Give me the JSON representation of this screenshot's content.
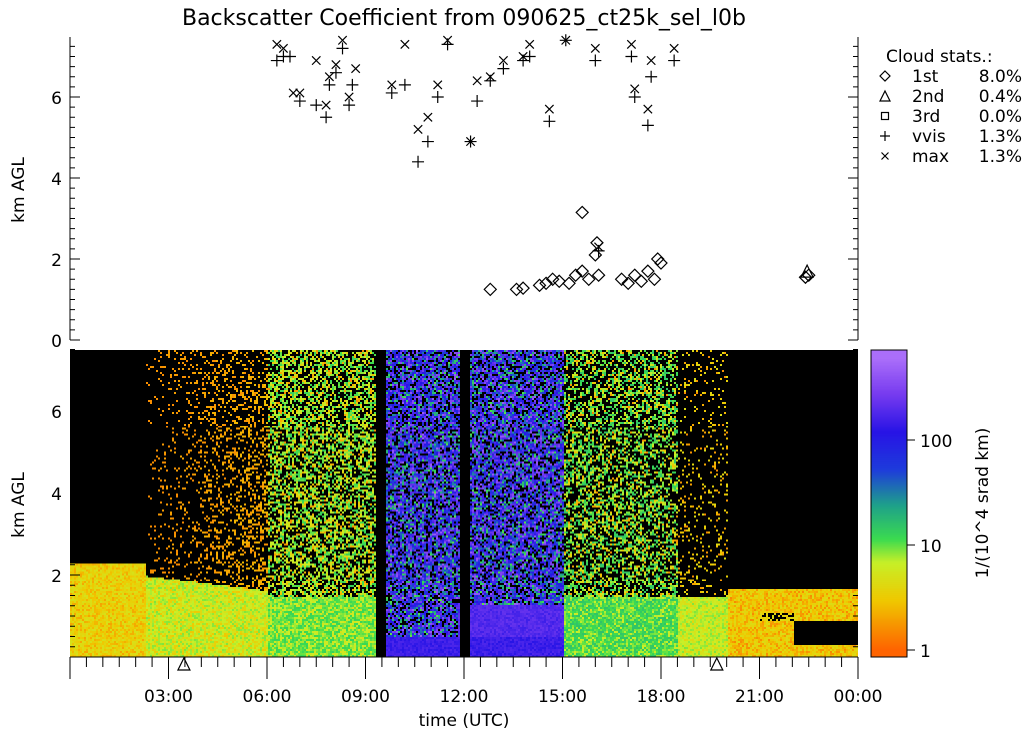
{
  "chart_data": [
    {
      "type": "scatter",
      "title": "Backscatter Coefficient from 090625_ct25k_sel_l0b",
      "ylabel": "km AGL",
      "xlim": [
        0,
        24
      ],
      "ylim": [
        0,
        7.5
      ],
      "y_ticks": [
        "0",
        "2",
        "4",
        "6"
      ],
      "legend": {
        "placement": "right",
        "title": "Cloud stats.:",
        "entries": [
          {
            "symbol": "diamond",
            "name": "1st",
            "value": "8.0%"
          },
          {
            "symbol": "triangle",
            "name": "2nd",
            "value": "0.4%"
          },
          {
            "symbol": "square",
            "name": "3rd",
            "value": "0.0%"
          },
          {
            "symbol": "plus",
            "name": "vvis",
            "value": "1.3%"
          },
          {
            "symbol": "cross",
            "name": "max",
            "value": "1.3%"
          }
        ]
      },
      "series": [
        {
          "name": "1st",
          "x": [
            12.8,
            13.6,
            13.8,
            14.3,
            14.5,
            14.7,
            14.9,
            15.2,
            15.4,
            15.6,
            15.6,
            15.8,
            16.0,
            16.05,
            16.1,
            16.8,
            17.0,
            17.2,
            17.4,
            17.6,
            17.8,
            17.9,
            18.0,
            22.4,
            22.5
          ],
          "y": [
            1.25,
            1.25,
            1.28,
            1.35,
            1.4,
            1.5,
            1.45,
            1.4,
            1.6,
            1.7,
            3.15,
            1.5,
            2.1,
            2.4,
            1.6,
            1.5,
            1.4,
            1.6,
            1.45,
            1.7,
            1.5,
            2.0,
            1.9,
            1.55,
            1.6
          ]
        },
        {
          "name": "2nd",
          "x": [
            22.45
          ],
          "y": [
            1.7
          ]
        },
        {
          "name": "3rd",
          "x": [],
          "y": []
        },
        {
          "name": "vvis",
          "x": [
            6.3,
            6.5,
            6.7,
            7.0,
            7.5,
            7.8,
            7.9,
            8.1,
            8.3,
            8.5,
            8.6,
            9.8,
            10.2,
            10.6,
            10.9,
            11.2,
            11.5,
            12.2,
            12.4,
            12.8,
            13.2,
            13.8,
            14.0,
            14.6,
            15.1,
            16.0,
            16.1,
            17.1,
            17.2,
            17.6,
            17.7,
            18.4
          ],
          "y": [
            6.9,
            7.0,
            7.0,
            5.9,
            5.8,
            5.5,
            6.3,
            6.6,
            7.2,
            5.8,
            6.3,
            6.1,
            6.3,
            4.4,
            4.9,
            6.0,
            7.3,
            4.9,
            5.9,
            6.4,
            6.7,
            6.9,
            7.0,
            5.4,
            7.4,
            6.9,
            2.2,
            7.0,
            6.0,
            5.3,
            6.5,
            6.9
          ]
        },
        {
          "name": "max",
          "x": [
            6.3,
            6.5,
            6.8,
            7.0,
            7.5,
            7.8,
            7.9,
            8.1,
            8.3,
            8.5,
            8.7,
            9.8,
            10.2,
            10.6,
            10.9,
            11.2,
            11.5,
            12.2,
            12.4,
            12.8,
            13.2,
            13.8,
            14.0,
            14.6,
            15.1,
            16.0,
            16.1,
            17.1,
            17.2,
            17.6,
            17.7,
            18.4
          ],
          "y": [
            7.3,
            7.2,
            6.1,
            6.1,
            6.9,
            5.8,
            6.5,
            6.8,
            7.4,
            6.0,
            6.7,
            6.3,
            7.3,
            5.2,
            5.5,
            6.3,
            7.4,
            4.9,
            6.4,
            6.5,
            6.9,
            7.0,
            7.3,
            5.7,
            7.4,
            7.2,
            2.3,
            7.3,
            6.2,
            5.7,
            6.9,
            7.2
          ]
        }
      ]
    },
    {
      "type": "heatmap",
      "ylabel": "km AGL",
      "xlabel": "time (UTC)",
      "xlim": [
        0,
        24
      ],
      "ylim": [
        0,
        7.5
      ],
      "x_ticks": [
        "03:00",
        "06:00",
        "09:00",
        "12:00",
        "15:00",
        "18:00",
        "21:00",
        "00:00"
      ],
      "y_ticks": [
        "2",
        "4",
        "6"
      ],
      "colorbar": {
        "label": "1/(10^4 srad km)",
        "scale": "log",
        "range": [
          1,
          600
        ],
        "ticks": [
          "1",
          "10",
          "100"
        ]
      },
      "markers": {
        "symbol": "triangle",
        "x": [
          3.47,
          19.7
        ]
      }
    }
  ]
}
